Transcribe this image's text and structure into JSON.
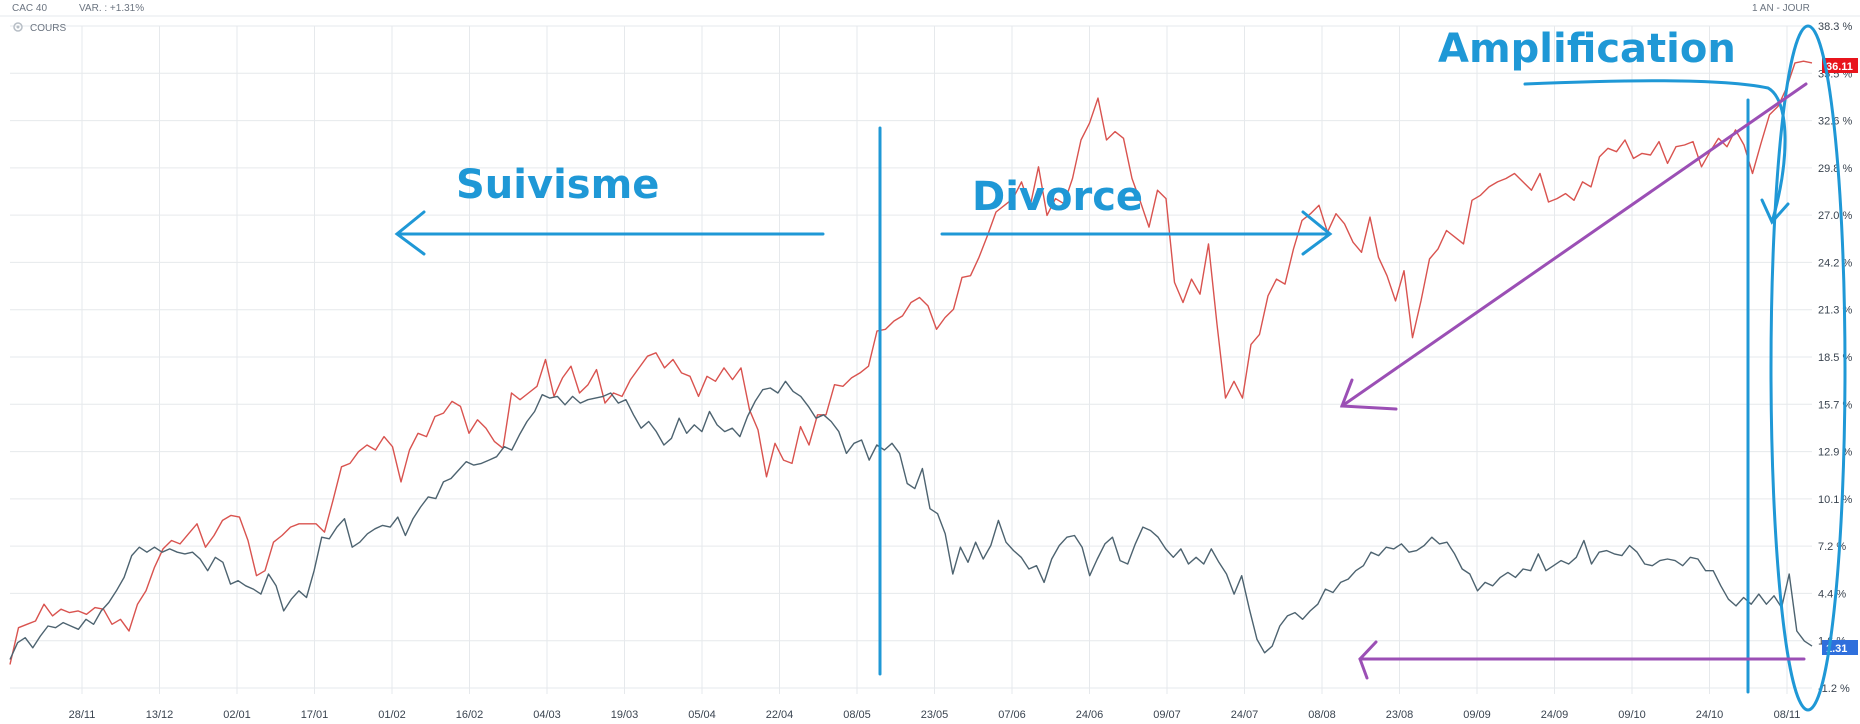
{
  "header": {
    "index_name": "CAC 40",
    "variation": "VAR. : +1.31%",
    "period": "1 AN - JOUR",
    "legend_label": "COURS"
  },
  "colors": {
    "series_red": "#d9534f",
    "series_gray": "#4d6370",
    "annotation_blue": "#1f98d6",
    "annotation_purple": "#9b4fb5",
    "badge_red": "#e8141c",
    "badge_blue": "#2f6fdc",
    "grid": "#e6e9ec"
  },
  "icons": {
    "legend": "gear-icon"
  },
  "badges": {
    "red": "36.11",
    "blue": "1.31"
  },
  "annotations": {
    "suivisme": "Suivisme",
    "divorce": "Divorce",
    "amplification": "Amplification"
  },
  "chart_data": {
    "type": "line",
    "title": "",
    "xlabel": "",
    "ylabel": "",
    "ylim": [
      -1.2,
      38.3
    ],
    "grid": true,
    "x_tick_labels": [
      "28/11",
      "13/12",
      "02/01",
      "17/01",
      "01/02",
      "16/02",
      "04/03",
      "19/03",
      "05/04",
      "22/04",
      "08/05",
      "23/05",
      "07/06",
      "24/06",
      "09/07",
      "24/07",
      "08/08",
      "23/08",
      "09/09",
      "24/09",
      "09/10",
      "24/10",
      "08/11"
    ],
    "y_tick_labels": [
      "38.3 %",
      "35.5 %",
      "32.6 %",
      "29.8 %",
      "27.0 %",
      "24.2 %",
      "21.3 %",
      "18.5 %",
      "15.7 %",
      "12.9 %",
      "10.1 %",
      "7.2 %",
      "4.4 %",
      "1.6 %",
      "-1.2 %"
    ],
    "series": [
      {
        "values": [
          0.2,
          2.4,
          2.6,
          2.8,
          3.8,
          3.1,
          3.5,
          3.3,
          3.4,
          3.2,
          3.6,
          3.5,
          2.6,
          2.9,
          2.2,
          3.8,
          4.6,
          6.0,
          7.1,
          7.6,
          7.4,
          8.0,
          8.6,
          7.2,
          7.9,
          8.8,
          9.1,
          9.0,
          7.6,
          5.5,
          5.8,
          7.5,
          7.9,
          8.4,
          8.6,
          8.6,
          8.6,
          8.1,
          10.0,
          12.0,
          12.2,
          12.9,
          13.3,
          13.0,
          13.8,
          13.2,
          11.1,
          13.0,
          14.0,
          13.8,
          15.0,
          15.2,
          15.9,
          15.6,
          14.0,
          14.8,
          14.3,
          13.5,
          13.1,
          16.4,
          16.0,
          16.4,
          16.8,
          18.4,
          16.2,
          17.3,
          18.0,
          16.4,
          16.9,
          17.8,
          15.8,
          16.4,
          16.2,
          17.2,
          17.9,
          18.6,
          18.8,
          17.9,
          18.4,
          17.6,
          17.4,
          16.2,
          17.4,
          17.1,
          17.9,
          17.2,
          17.9,
          15.4,
          14.2,
          11.4,
          13.4,
          12.4,
          12.2,
          14.4,
          13.3,
          15.1,
          15.1,
          16.9,
          16.8,
          17.3,
          17.6,
          18.0,
          20.1,
          20.2,
          20.7,
          21.0,
          21.8,
          22.1,
          21.6,
          20.2,
          20.9,
          21.4,
          23.3,
          23.4,
          24.5,
          25.8,
          27.2,
          27.6,
          28.0,
          29.0,
          27.5,
          29.9,
          27.0,
          28.0,
          27.7,
          29.2,
          31.5,
          32.5,
          34.0,
          31.5,
          32.0,
          31.6,
          29.2,
          27.8,
          26.3,
          28.5,
          28.0,
          23.0,
          21.8,
          23.2,
          22.3,
          25.3,
          20.5,
          16.1,
          17.1,
          16.1,
          19.3,
          19.9,
          22.2,
          23.2,
          22.9,
          25.0,
          26.7,
          27.1,
          27.6,
          26.0,
          27.1,
          26.5,
          25.4,
          24.8,
          26.9,
          24.5,
          23.4,
          21.9,
          23.7,
          19.7,
          21.9,
          24.4,
          25.0,
          26.1,
          25.7,
          25.3,
          27.9,
          28.2,
          28.7,
          29.0,
          29.2,
          29.5,
          29.0,
          28.5,
          29.5,
          27.8,
          28.0,
          28.3,
          27.9,
          29.0,
          28.7,
          30.5,
          31.0,
          30.8,
          31.5,
          30.4,
          30.7,
          30.6,
          31.4,
          30.1,
          31.1,
          31.2,
          31.4,
          29.9,
          30.8,
          31.6,
          31.1,
          32.1,
          31.2,
          29.5,
          31.3,
          33.0,
          33.5,
          34.6,
          36.1,
          36.2,
          36.1
        ]
      },
      {
        "values": [
          0.5,
          1.5,
          1.8,
          1.2,
          1.9,
          2.5,
          2.4,
          2.7,
          2.5,
          2.3,
          2.9,
          2.6,
          3.4,
          3.9,
          4.6,
          5.4,
          6.7,
          7.2,
          6.9,
          7.2,
          6.9,
          7.1,
          6.9,
          6.8,
          6.9,
          6.5,
          5.8,
          6.6,
          6.3,
          5.0,
          5.2,
          4.9,
          4.7,
          4.4,
          5.6,
          4.9,
          3.4,
          4.1,
          4.6,
          4.2,
          5.8,
          7.8,
          7.7,
          8.4,
          8.9,
          7.2,
          7.5,
          8.0,
          8.3,
          8.5,
          8.4,
          9.0,
          7.9,
          8.9,
          9.6,
          10.2,
          10.1,
          11.1,
          11.3,
          11.8,
          12.3,
          12.1,
          12.2,
          12.4,
          12.6,
          13.2,
          13.0,
          13.9,
          14.7,
          15.3,
          16.3,
          16.1,
          16.2,
          15.7,
          16.2,
          15.8,
          16.0,
          16.1,
          16.2,
          16.4,
          15.8,
          16.0,
          15.1,
          14.3,
          14.7,
          14.1,
          13.3,
          13.7,
          14.9,
          14.0,
          14.5,
          14.1,
          15.3,
          14.5,
          14.1,
          14.3,
          13.8,
          15.0,
          15.9,
          16.6,
          16.7,
          16.4,
          17.1,
          16.5,
          16.2,
          15.6,
          14.9,
          15.1,
          14.7,
          14.1,
          12.8,
          13.4,
          13.6,
          12.4,
          13.3,
          13.0,
          13.4,
          12.8,
          11.0,
          10.7,
          11.9,
          9.5,
          9.2,
          8.0,
          5.6,
          7.2,
          6.3,
          7.5,
          6.5,
          7.3,
          8.8,
          7.5,
          7.0,
          6.6,
          5.9,
          6.1,
          5.1,
          6.5,
          7.3,
          7.8,
          7.9,
          7.2,
          5.5,
          6.5,
          7.4,
          7.8,
          6.4,
          6.2,
          7.4,
          8.4,
          8.2,
          7.8,
          7.1,
          6.6,
          7.1,
          6.2,
          6.6,
          6.2,
          7.1,
          6.3,
          5.6,
          4.4,
          5.5,
          3.5,
          1.7,
          0.9,
          1.3,
          2.5,
          3.1,
          3.3,
          2.9,
          3.4,
          3.8,
          4.7,
          4.5,
          5.1,
          5.3,
          5.8,
          6.1,
          6.9,
          6.7,
          7.2,
          7.1,
          7.4,
          6.9,
          7.0,
          7.3,
          7.8,
          7.4,
          7.5,
          6.8,
          5.9,
          5.6,
          4.6,
          5.1,
          4.9,
          5.4,
          5.7,
          5.4,
          5.9,
          5.8,
          6.8,
          5.8,
          6.1,
          6.4,
          6.2,
          6.6,
          7.6,
          6.2,
          6.9,
          7.0,
          6.8,
          6.7,
          7.3,
          6.9,
          6.2,
          6.1,
          6.4,
          6.5,
          6.4,
          6.1,
          6.6,
          6.5,
          5.8,
          5.8,
          4.9,
          4.1,
          3.7,
          4.2,
          3.8,
          4.4,
          3.8,
          4.3,
          3.6,
          5.6,
          2.2,
          1.6,
          1.3
        ]
      }
    ]
  }
}
